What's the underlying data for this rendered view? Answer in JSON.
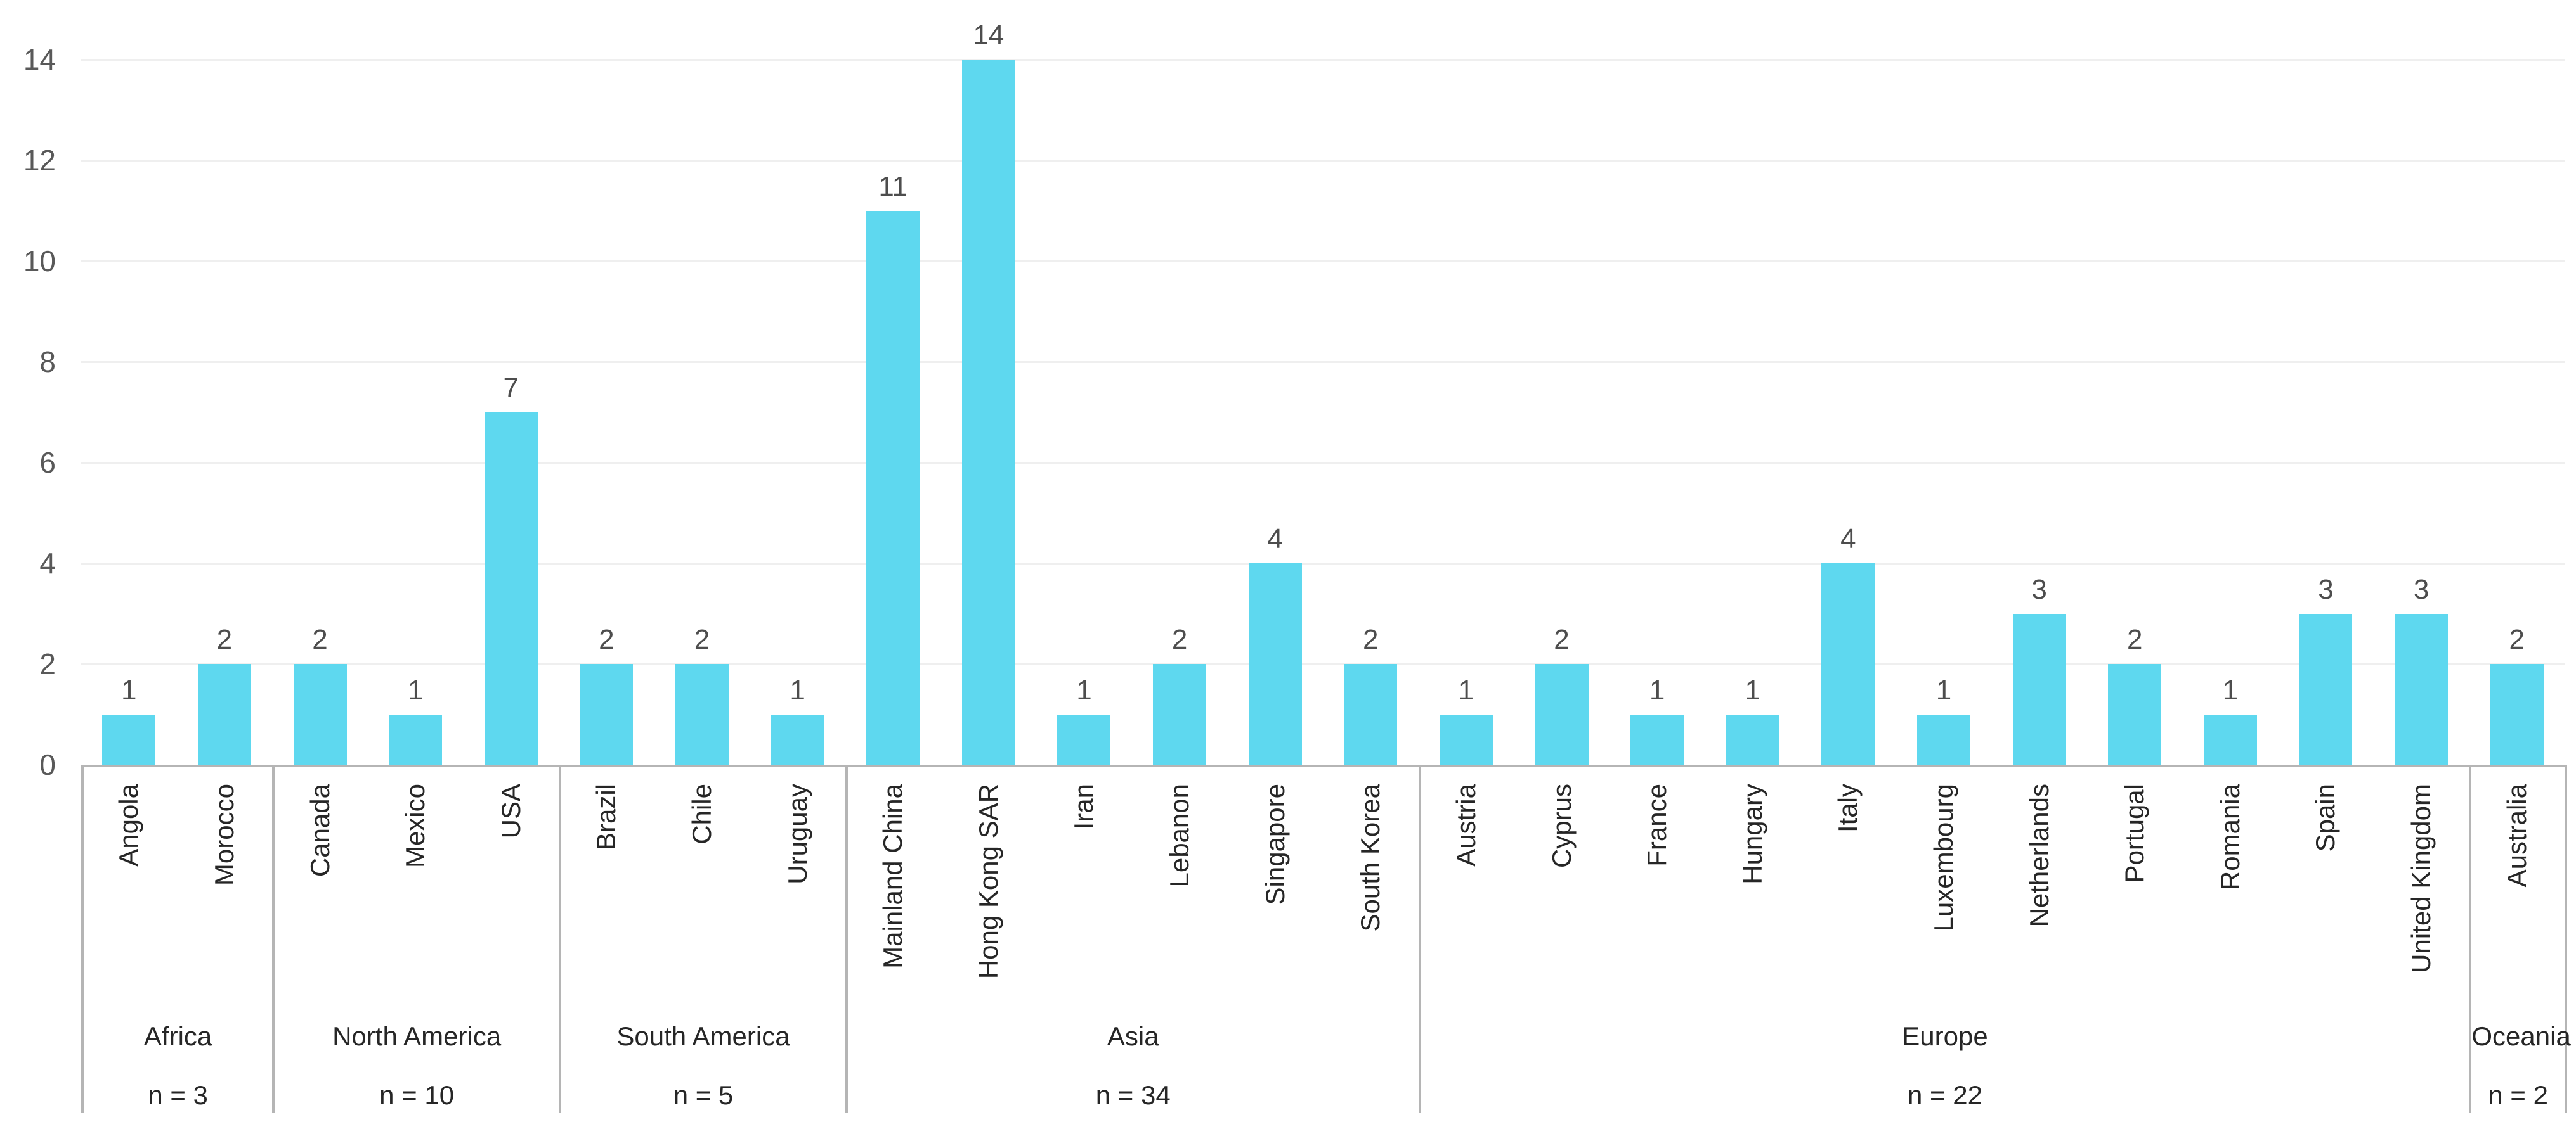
{
  "chart_data": {
    "type": "bar",
    "title": "",
    "xlabel": "",
    "ylabel": "",
    "ylim": [
      0,
      14
    ],
    "yticks": [
      0,
      2,
      4,
      6,
      8,
      10,
      12,
      14
    ],
    "grid": "horizontal",
    "legend": "none",
    "bar_color": "#5ed8ef",
    "groups": [
      {
        "continent": "Africa",
        "n_label": "n = 3",
        "categories": [
          "Angola",
          "Morocco"
        ],
        "values": [
          1,
          2
        ]
      },
      {
        "continent": "North America",
        "n_label": "n = 10",
        "categories": [
          "Canada",
          "Mexico",
          "USA"
        ],
        "values": [
          2,
          1,
          7
        ]
      },
      {
        "continent": "South America",
        "n_label": "n = 5",
        "categories": [
          "Brazil",
          "Chile",
          "Uruguay"
        ],
        "values": [
          2,
          2,
          1
        ]
      },
      {
        "continent": "Asia",
        "n_label": "n = 34",
        "categories": [
          "Mainland China",
          "Hong Kong SAR",
          "Iran",
          "Lebanon",
          "Singapore",
          "South Korea"
        ],
        "values": [
          11,
          14,
          1,
          2,
          4,
          2
        ]
      },
      {
        "continent": "Europe",
        "n_label": "n = 22",
        "categories": [
          "Austria",
          "Cyprus",
          "France",
          "Hungary",
          "Italy",
          "Luxembourg",
          "Netherlands",
          "Portugal",
          "Romania",
          "Spain",
          "United Kingdom"
        ],
        "values": [
          1,
          2,
          1,
          1,
          4,
          1,
          3,
          2,
          1,
          3,
          3
        ]
      },
      {
        "continent": "Oceania",
        "n_label": "n = 2",
        "categories": [
          "Australia"
        ],
        "values": [
          2
        ]
      }
    ]
  },
  "colors": {
    "bar": "#5ed8ef",
    "gridline": "#efefef",
    "box_border": "#b5b5b5",
    "ytick_text": "#595959",
    "value_text": "#4d4d4d",
    "label_text": "#262626"
  }
}
